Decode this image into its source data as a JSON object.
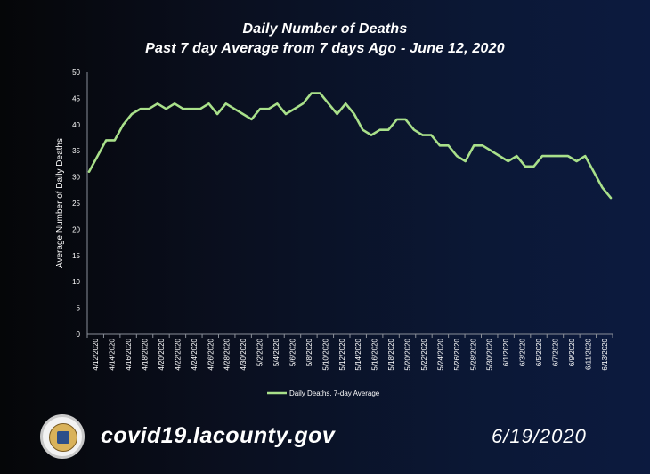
{
  "header": {
    "title_line1": "Daily Number of Deaths",
    "title_line2": "Past 7 day Average from 7 days Ago - June 12, 2020"
  },
  "chart_data": {
    "type": "line",
    "ylabel": "Average Number of Daily Deaths",
    "xlabel": "",
    "ylim": [
      0,
      50
    ],
    "yticks": [
      0,
      5,
      10,
      15,
      20,
      25,
      30,
      35,
      40,
      45,
      50
    ],
    "x_start": "4/12/2020",
    "x_end": "6/13/2020",
    "x_tick_labels": [
      "4/12/2020",
      "4/14/2020",
      "4/16/2020",
      "4/18/2020",
      "4/20/2020",
      "4/22/2020",
      "4/24/2020",
      "4/26/2020",
      "4/28/2020",
      "4/30/2020",
      "5/2/2020",
      "5/4/2020",
      "5/6/2020",
      "5/8/2020",
      "5/10/2020",
      "5/12/2020",
      "5/14/2020",
      "5/16/2020",
      "5/18/2020",
      "5/20/2020",
      "5/22/2020",
      "5/24/2020",
      "5/26/2020",
      "5/28/2020",
      "5/30/2020",
      "6/1/2020",
      "6/3/2020",
      "6/5/2020",
      "6/7/2020",
      "6/9/2020",
      "6/11/2020",
      "6/13/2020"
    ],
    "series": [
      {
        "name": "Daily Deaths, 7-day Average",
        "color": "#a9e08a",
        "values": [
          31,
          34,
          37,
          37,
          40,
          42,
          43,
          43,
          44,
          43,
          44,
          43,
          43,
          43,
          44,
          42,
          44,
          43,
          42,
          41,
          43,
          43,
          44,
          42,
          43,
          44,
          46,
          46,
          44,
          42,
          44,
          42,
          39,
          38,
          39,
          39,
          41,
          41,
          39,
          38,
          38,
          36,
          36,
          34,
          33,
          36,
          36,
          35,
          34,
          33,
          34,
          32,
          32,
          34,
          34,
          34,
          34,
          33,
          34,
          31,
          28,
          26
        ]
      }
    ],
    "legend_position": "bottom-center",
    "grid": false
  },
  "footer": {
    "website": "covid19.lacounty.gov",
    "date": "6/19/2020"
  },
  "colors": {
    "line": "#a9e08a",
    "axis": "#8a8f99",
    "text": "#ffffff"
  }
}
